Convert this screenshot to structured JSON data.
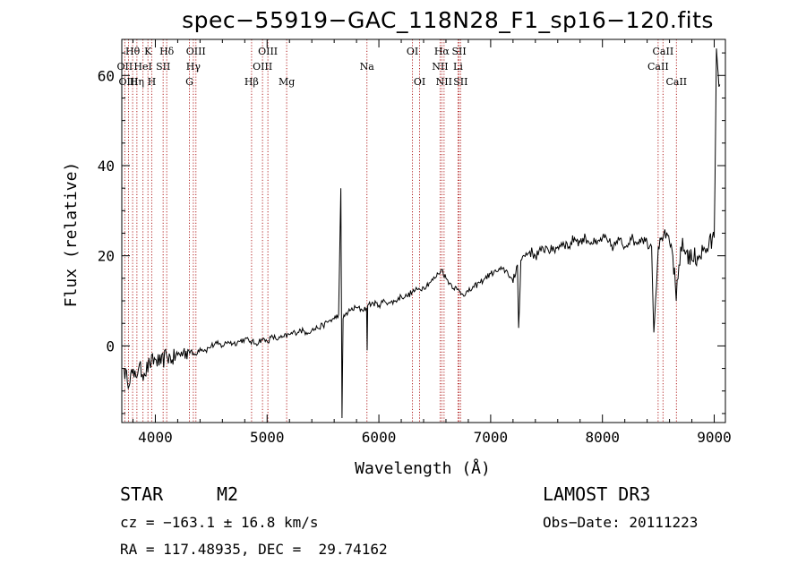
{
  "chart_data": {
    "type": "line",
    "title": "spec−55919−GAC_118N28_F1_sp16−120.fits",
    "xlabel": "Wavelength (Å)",
    "ylabel": "Flux (relative)",
    "xlim": [
      3700,
      9100
    ],
    "ylim": [
      -17,
      68
    ],
    "xticks": [
      4000,
      5000,
      6000,
      7000,
      8000,
      9000
    ],
    "yticks": [
      0,
      20,
      40,
      60
    ],
    "series": [
      {
        "name": "flux",
        "x": [
          3720,
          3750,
          3780,
          3810,
          3850,
          3900,
          3950,
          4000,
          4050,
          4100,
          4150,
          4200,
          4250,
          4300,
          4350,
          4400,
          4450,
          4500,
          4550,
          4600,
          4650,
          4700,
          4750,
          4800,
          4850,
          4900,
          4950,
          5000,
          5050,
          5100,
          5150,
          5200,
          5250,
          5300,
          5350,
          5400,
          5450,
          5500,
          5550,
          5600,
          5640,
          5660,
          5670,
          5680,
          5700,
          5750,
          5800,
          5850,
          5890,
          5895,
          5900,
          5950,
          6000,
          6050,
          6100,
          6150,
          6200,
          6250,
          6300,
          6350,
          6400,
          6450,
          6500,
          6530,
          6563,
          6600,
          6650,
          6700,
          6750,
          6800,
          6850,
          6900,
          6950,
          7000,
          7050,
          7100,
          7150,
          7200,
          7240,
          7250,
          7270,
          7300,
          7350,
          7400,
          7450,
          7500,
          7550,
          7600,
          7650,
          7700,
          7750,
          7800,
          7850,
          7900,
          7950,
          8000,
          8050,
          8100,
          8150,
          8200,
          8250,
          8300,
          8350,
          8400,
          8440,
          8460,
          8500,
          8530,
          8550,
          8600,
          8630,
          8660,
          8700,
          8750,
          8800,
          8850,
          8900,
          8950,
          9000,
          9020,
          9050
        ],
        "values": [
          -5,
          -8,
          -6,
          -7,
          -5,
          -6,
          -4,
          -3,
          -4,
          -2,
          -3,
          -2,
          -1.5,
          -1,
          -2,
          -0.5,
          -1,
          0,
          0.5,
          0,
          1,
          0.5,
          1,
          1.5,
          1,
          0.5,
          1.5,
          1,
          2,
          1.5,
          2,
          2.5,
          3,
          3.5,
          3,
          3.5,
          4,
          4.5,
          5.5,
          6,
          7,
          35,
          -16,
          6,
          7,
          8,
          8.5,
          8,
          8.5,
          -1,
          9,
          9.5,
          9,
          10,
          9.5,
          10,
          11,
          11,
          12,
          12.5,
          13,
          14,
          15,
          16,
          17,
          15,
          13.5,
          12.5,
          11.5,
          12,
          13,
          14,
          15,
          16,
          16.5,
          17,
          16.5,
          14,
          18,
          4,
          19,
          20,
          21,
          20,
          21,
          22,
          21,
          22,
          23,
          22,
          24,
          23,
          24,
          23,
          22.5,
          24,
          23,
          22,
          23.5,
          22,
          24,
          23,
          24,
          23,
          22,
          3,
          22,
          24,
          25,
          23,
          20,
          10,
          22,
          21,
          19,
          20,
          21,
          22,
          24,
          66,
          58
        ]
      }
    ],
    "line_labels": [
      {
        "label": "Hθ",
        "x": 3797,
        "row": 1
      },
      {
        "label": "K",
        "x": 3934,
        "row": 1
      },
      {
        "label": "Hδ",
        "x": 4102,
        "row": 1
      },
      {
        "label": "OIII",
        "x": 4363,
        "row": 1
      },
      {
        "label": "OIII",
        "x": 5007,
        "row": 1
      },
      {
        "label": "OI",
        "x": 6300,
        "row": 1
      },
      {
        "label": "Hα",
        "x": 6563,
        "row": 1
      },
      {
        "label": "SII",
        "x": 6717,
        "row": 1
      },
      {
        "label": "CaII",
        "x": 8542,
        "row": 1
      },
      {
        "label": "OII",
        "x": 3727,
        "row": 2
      },
      {
        "label": "HeI",
        "x": 3889,
        "row": 2
      },
      {
        "label": "SII",
        "x": 4070,
        "row": 2
      },
      {
        "label": "Hγ",
        "x": 4340,
        "row": 2
      },
      {
        "label": "OIII",
        "x": 4959,
        "row": 2
      },
      {
        "label": "Na",
        "x": 5893,
        "row": 2
      },
      {
        "label": "NII",
        "x": 6548,
        "row": 2
      },
      {
        "label": "Li",
        "x": 6708,
        "row": 2
      },
      {
        "label": "CaII",
        "x": 8498,
        "row": 2
      },
      {
        "label": "OIII",
        "x": 3760,
        "row": 3
      },
      {
        "label": "Hη",
        "x": 3835,
        "row": 3
      },
      {
        "label": "H",
        "x": 3968,
        "row": 3
      },
      {
        "label": "G",
        "x": 4305,
        "row": 3
      },
      {
        "label": "Hβ",
        "x": 4861,
        "row": 3
      },
      {
        "label": "Mg",
        "x": 5175,
        "row": 3
      },
      {
        "label": "OI",
        "x": 6364,
        "row": 3
      },
      {
        "label": "NII",
        "x": 6583,
        "row": 3
      },
      {
        "label": "SII",
        "x": 6731,
        "row": 3
      },
      {
        "label": "CaII",
        "x": 8662,
        "row": 3
      }
    ]
  },
  "info": {
    "class": "STAR",
    "subclass": "M2",
    "survey": "LAMOST DR3",
    "velocity": "cz = −163.1 ± 16.8 km/s",
    "obs_date": "Obs−Date: 20111223",
    "coords": "RA = 117.48935, DEC =  29.74162"
  }
}
